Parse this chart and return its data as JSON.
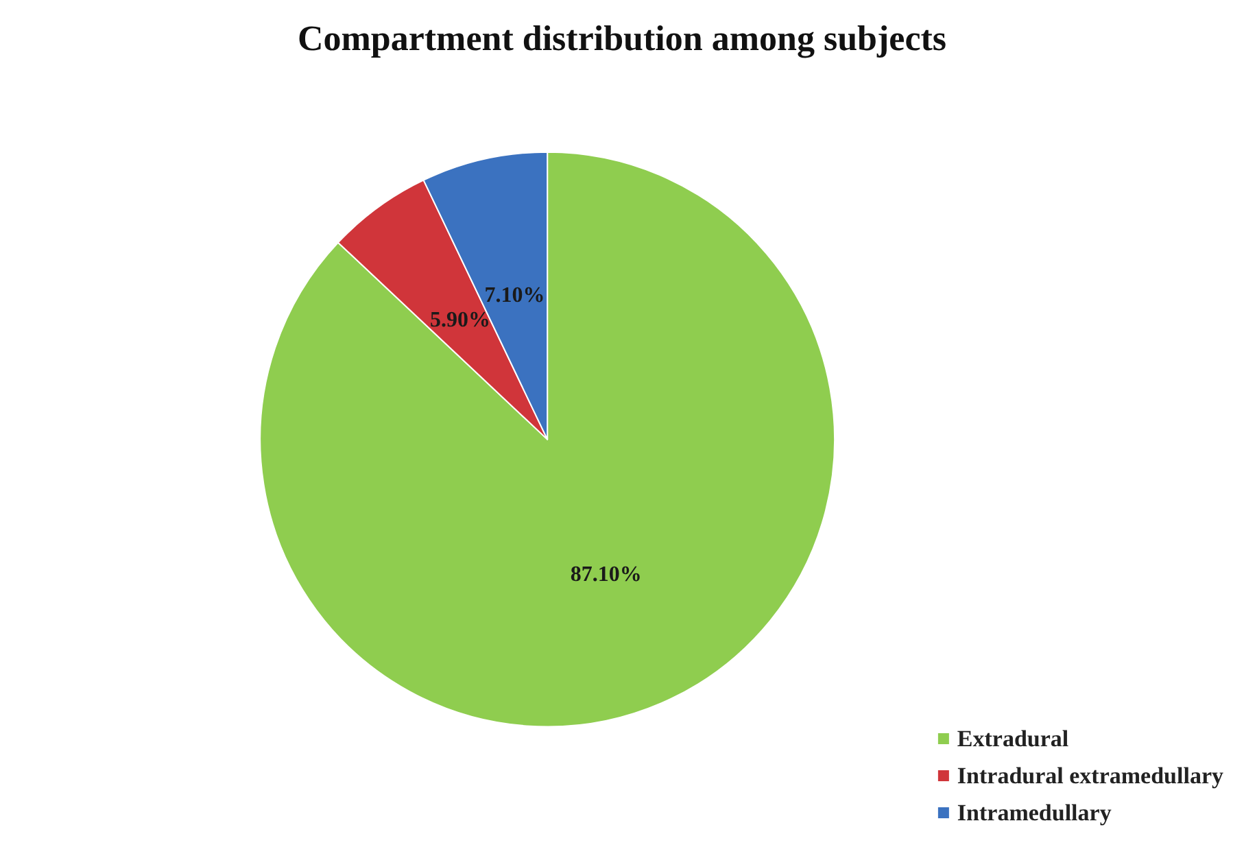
{
  "chart_data": {
    "type": "pie",
    "title": "Compartment distribution among subjects",
    "categories": [
      "Extradural",
      "Intradural extramedullary",
      "Intramedullary"
    ],
    "values": [
      87.1,
      5.9,
      7.1
    ],
    "value_labels": [
      "87.10%",
      "5.90%",
      "7.10%"
    ],
    "colors": [
      "#8fcd4f",
      "#d0353a",
      "#3b72c0"
    ],
    "legend": "bottom right"
  }
}
